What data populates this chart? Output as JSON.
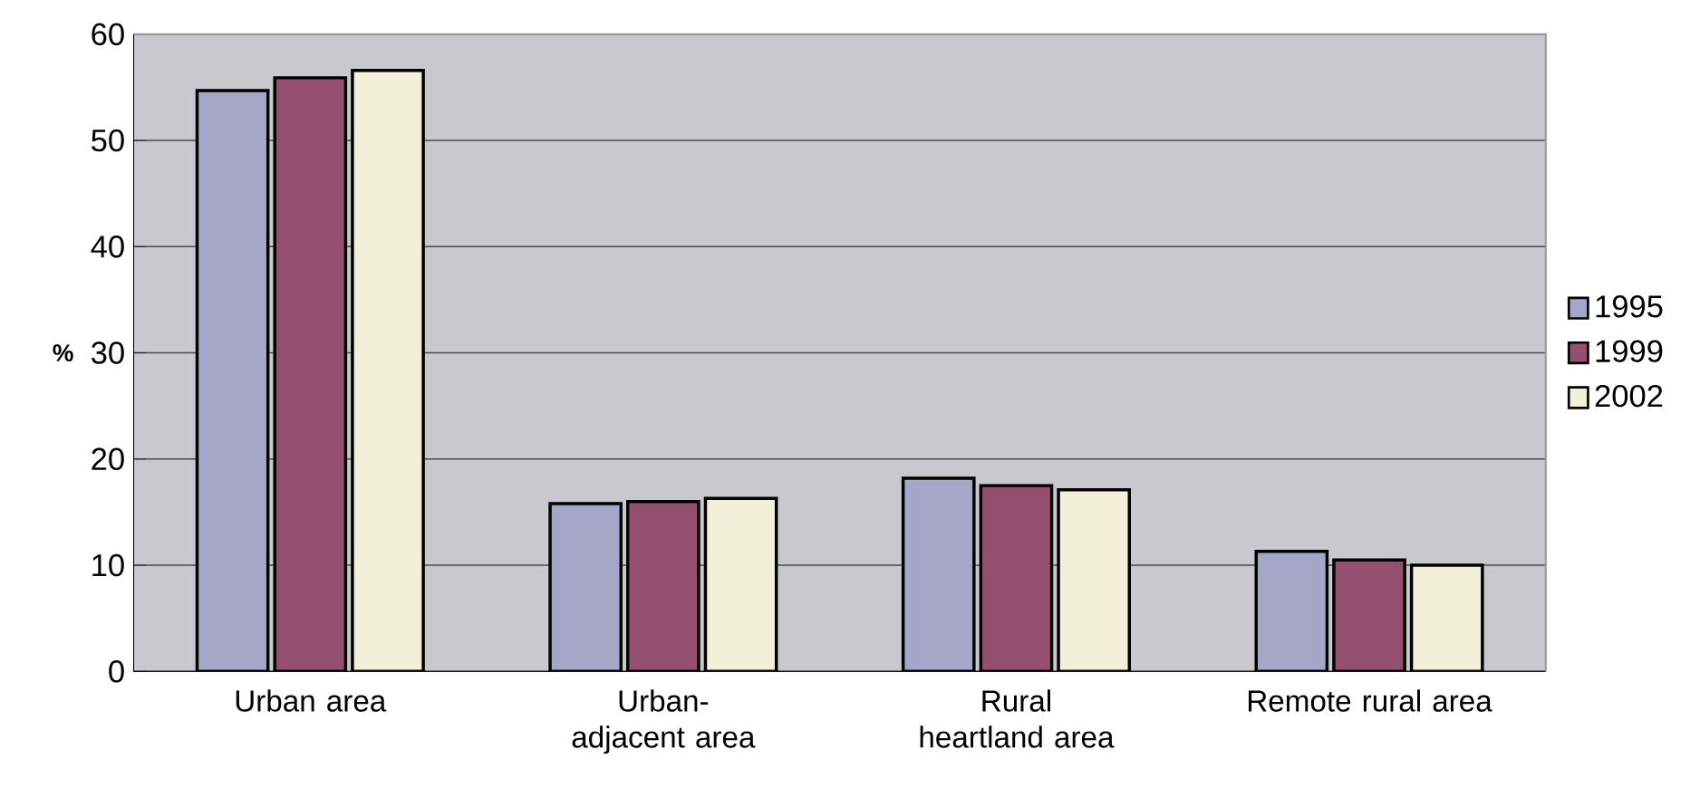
{
  "chart_data": {
    "type": "bar",
    "ylabel": "%",
    "categories": [
      "Urban area",
      "Urban-adjacent area",
      "Rural heartland area",
      "Remote rural area"
    ],
    "series": [
      {
        "name": "1995",
        "color": "#a6a6c8",
        "values": [
          54.7,
          15.8,
          18.2,
          11.3
        ]
      },
      {
        "name": "1999",
        "color": "#94506e",
        "values": [
          55.9,
          16.0,
          17.5,
          10.5
        ]
      },
      {
        "name": "2002",
        "color": "#f2f0d8",
        "values": [
          56.6,
          16.3,
          17.1,
          10.0
        ]
      }
    ],
    "ylim": [
      0,
      60
    ],
    "yticks": [
      0,
      10,
      20,
      30,
      40,
      50,
      60
    ],
    "grid": "y",
    "legend": "right"
  }
}
